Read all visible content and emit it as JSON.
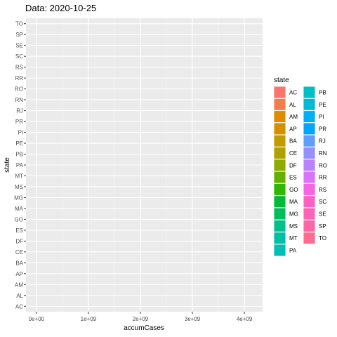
{
  "chart_data": {
    "type": "bar",
    "orientation": "horizontal",
    "title": "Data: 2020-10-25",
    "xlabel": "accumCases",
    "ylabel": "state",
    "xlim": [
      -200000000,
      4350000000
    ],
    "xticks": [
      0,
      1000000000,
      2000000000,
      3000000000,
      4000000000
    ],
    "xtick_labels": [
      "0e+00",
      "1e+09",
      "2e+09",
      "3e+09",
      "4e+09"
    ],
    "categories": [
      "AC",
      "AL",
      "AM",
      "AP",
      "BA",
      "CE",
      "DF",
      "ES",
      "GO",
      "MA",
      "MG",
      "MS",
      "MT",
      "PA",
      "PB",
      "PE",
      "PI",
      "PR",
      "RJ",
      "RN",
      "RO",
      "RR",
      "RS",
      "SC",
      "SE",
      "SP",
      "TO"
    ],
    "values": [
      0,
      0,
      0,
      0,
      0,
      0,
      0,
      0,
      0,
      0,
      0,
      0,
      0,
      0,
      0,
      0,
      0,
      0,
      0,
      0,
      0,
      0,
      0,
      0,
      0,
      0,
      0
    ],
    "grid": true,
    "legend": {
      "title": "state",
      "position": "right",
      "columns": 2,
      "items": [
        {
          "label": "AC",
          "color": "#F8766D"
        },
        {
          "label": "AL",
          "color": "#F07F4B"
        },
        {
          "label": "AM",
          "color": "#DE8C00"
        },
        {
          "label": "AP",
          "color": "#D49000"
        },
        {
          "label": "BA",
          "color": "#C39A00"
        },
        {
          "label": "CE",
          "color": "#AEA200"
        },
        {
          "label": "DF",
          "color": "#8EAB00"
        },
        {
          "label": "ES",
          "color": "#64B200"
        },
        {
          "label": "GO",
          "color": "#2EB800"
        },
        {
          "label": "MA",
          "color": "#00BA38"
        },
        {
          "label": "MG",
          "color": "#00BD5C"
        },
        {
          "label": "MS",
          "color": "#00C08B"
        },
        {
          "label": "MT",
          "color": "#00C0A3"
        },
        {
          "label": "PA",
          "color": "#00BFB4"
        },
        {
          "label": "PB",
          "color": "#00BFC4"
        },
        {
          "label": "PE",
          "color": "#00B8D8"
        },
        {
          "label": "PI",
          "color": "#00B0F6"
        },
        {
          "label": "PR",
          "color": "#00A5FF"
        },
        {
          "label": "RJ",
          "color": "#619CFF"
        },
        {
          "label": "RN",
          "color": "#9590FF"
        },
        {
          "label": "RO",
          "color": "#B983FF"
        },
        {
          "label": "RR",
          "color": "#DB72FB"
        },
        {
          "label": "RS",
          "color": "#F564E3"
        },
        {
          "label": "SC",
          "color": "#FF61C3"
        },
        {
          "label": "SE",
          "color": "#FF63B6"
        },
        {
          "label": "SP",
          "color": "#FF67A4"
        },
        {
          "label": "TO",
          "color": "#FF6C91"
        }
      ]
    },
    "colors": {
      "panel_background": "#EBEBEB",
      "grid_major": "#FFFFFF",
      "grid_minor": "#F5F5F5"
    }
  }
}
